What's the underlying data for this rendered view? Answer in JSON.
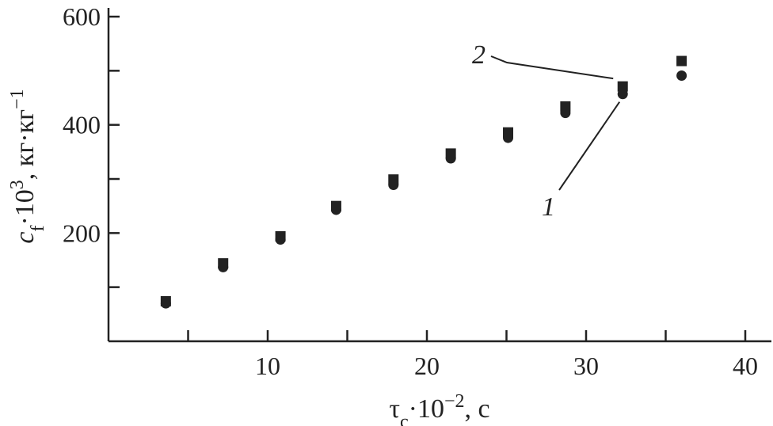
{
  "chart_data": {
    "type": "scatter",
    "xlabel": "τc·10−2, c",
    "ylabel": "cf·103, кг·кг−1",
    "xlim": [
      0,
      41.5
    ],
    "ylim": [
      0,
      625
    ],
    "x_ticks": [
      10,
      20,
      30,
      40
    ],
    "x_tick_labels": [
      "10",
      "20",
      "30",
      "40"
    ],
    "x_minor_ticks": [
      5,
      15,
      25,
      35
    ],
    "y_ticks": [
      200,
      400,
      600
    ],
    "y_tick_labels": [
      "200",
      "400",
      "600"
    ],
    "y_minor_ticks": [
      100,
      300,
      500
    ],
    "grid": false,
    "series": [
      {
        "name": "1",
        "marker": "circle",
        "x": [
          3.6,
          7.2,
          10.8,
          14.3,
          17.9,
          21.5,
          25.1,
          28.7,
          32.3,
          36.0
        ],
        "values": [
          70,
          137,
          188,
          243,
          289,
          338,
          376,
          422,
          457,
          491
        ]
      },
      {
        "name": "2",
        "marker": "square",
        "x": [
          3.6,
          7.2,
          10.8,
          14.3,
          17.9,
          21.5,
          25.1,
          28.7,
          32.3,
          36.0
        ],
        "values": [
          74,
          144,
          194,
          250,
          299,
          347,
          386,
          434,
          471,
          518
        ]
      }
    ],
    "annotations": [
      {
        "text": "1",
        "target_series": "1",
        "target_index": 8
      },
      {
        "text": "2",
        "target_series": "2",
        "target_index": 8
      }
    ]
  },
  "colors": {
    "ink": "#222222",
    "background": "#ffffff"
  }
}
